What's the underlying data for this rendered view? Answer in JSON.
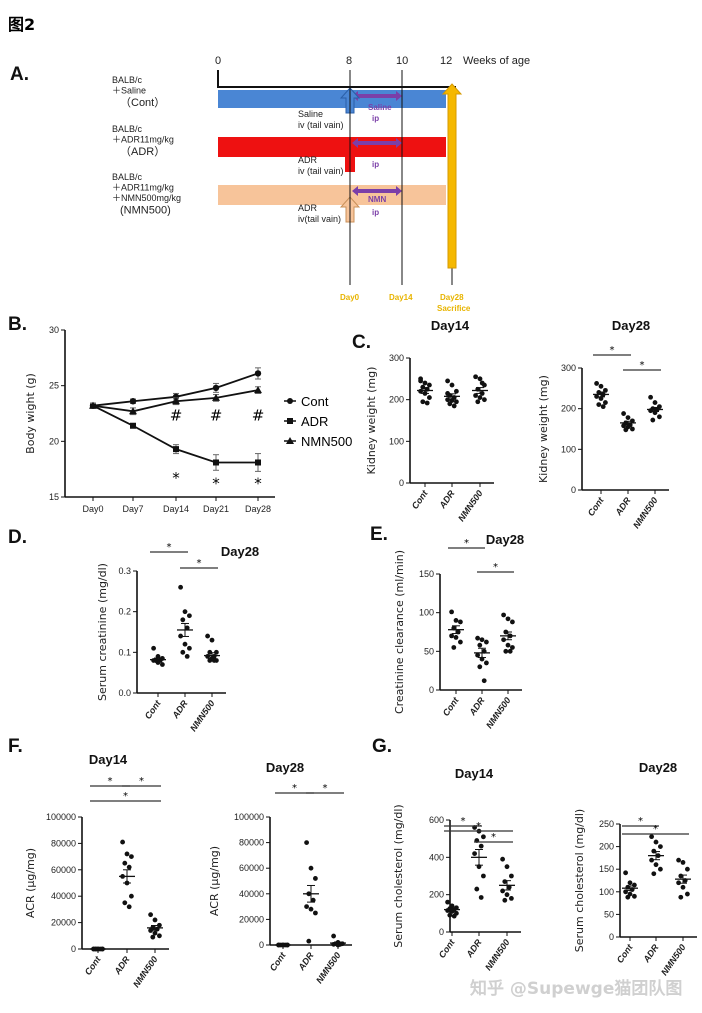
{
  "figure_label": "图2",
  "watermark": "知乎 @Supewge猫团队图",
  "panel_a": {
    "letter": "A.",
    "axis_ticks": [
      "0",
      "8",
      "10",
      "12"
    ],
    "axis_label": "Weeks of age",
    "groups": [
      {
        "lines": [
          "BALB/c",
          "＋Saline",
          "（Cont）"
        ],
        "bar_color": "#4a86d4",
        "inj": [
          "Saline",
          "iv (tail vain)"
        ],
        "inj_color": "#7a9fd0",
        "ip": [
          "Saline",
          "ip"
        ]
      },
      {
        "lines": [
          "BALB/c",
          "＋ADR11mg/kg",
          "（ADR）"
        ],
        "bar_color": "#ee1111",
        "inj": [
          "ADR",
          "iv (tail vain)"
        ],
        "inj_color": "#d42020",
        "ip": [
          "",
          "ip"
        ]
      },
      {
        "lines": [
          "BALB/c",
          "＋ADR11mg/kg",
          "＋NMN500mg/kg",
          "(NMN500)"
        ],
        "bar_color": "#f7c49a",
        "inj": [
          "ADR",
          "iv(tail vain)"
        ],
        "inj_color": "#e0a060",
        "ip": [
          "NMN",
          "ip"
        ]
      }
    ],
    "ip_color": "#7b3fa8",
    "day_labels": [
      "Day0",
      "Day14",
      "Day28",
      "Sacrifice"
    ],
    "day_color": "#e8b400",
    "sacrifice_color": "#f5b800"
  },
  "letters": {
    "b": "B.",
    "c": "C.",
    "d": "D.",
    "e": "E.",
    "f": "F.",
    "g": "G."
  },
  "chart_data": [
    {
      "id": "B",
      "type": "line",
      "title": "",
      "ylabel": "Body wight (g)",
      "xlabel": "",
      "categories": [
        "Day0",
        "Day7",
        "Day14",
        "Day21",
        "Day28"
      ],
      "ylim": [
        15,
        30
      ],
      "yticks": [
        15,
        20,
        25,
        30
      ],
      "series": [
        {
          "name": "Cont",
          "marker": "circle",
          "values": [
            23.2,
            23.6,
            24.0,
            24.8,
            26.1
          ],
          "sem": [
            0.2,
            0.2,
            0.3,
            0.4,
            0.5
          ]
        },
        {
          "name": "ADR",
          "marker": "square",
          "values": [
            23.2,
            21.4,
            19.3,
            18.1,
            18.1
          ],
          "sem": [
            0.2,
            0.2,
            0.4,
            0.7,
            0.8
          ]
        },
        {
          "name": "NMN500",
          "marker": "triangle",
          "values": [
            23.2,
            22.7,
            23.6,
            23.9,
            24.6
          ],
          "sem": [
            0.2,
            0.3,
            0.3,
            0.3,
            0.3
          ]
        }
      ],
      "annotations": [
        {
          "text": "#",
          "category": "Day14",
          "y": 22.3
        },
        {
          "text": "#",
          "category": "Day21",
          "y": 22.3
        },
        {
          "text": "#",
          "category": "Day28",
          "y": 22.3
        },
        {
          "text": "*",
          "category": "Day14",
          "y": 16.7
        },
        {
          "text": "*",
          "category": "Day21",
          "y": 16.2
        },
        {
          "text": "*",
          "category": "Day28",
          "y": 16.2
        }
      ],
      "legend": "right"
    },
    {
      "id": "C14",
      "type": "scatter",
      "title": "Day14",
      "ylabel": "Kidney weight (mg)",
      "categories": [
        "Cont",
        "ADR",
        "NMN500"
      ],
      "ylim": [
        0,
        300
      ],
      "yticks": [
        0,
        100,
        200,
        300
      ],
      "groups": [
        {
          "values": [
            250,
            240,
            235,
            230,
            225,
            220,
            215,
            205,
            195,
            192,
            245
          ],
          "mean": 222,
          "sem": 7
        },
        {
          "values": [
            245,
            235,
            220,
            210,
            205,
            200,
            198,
            195,
            190,
            185,
            215
          ],
          "mean": 208,
          "sem": 6
        },
        {
          "values": [
            255,
            250,
            235,
            225,
            215,
            210,
            205,
            200,
            195,
            240
          ],
          "mean": 222,
          "sem": 7
        }
      ],
      "significance": []
    },
    {
      "id": "C28",
      "type": "scatter",
      "title": "Day28",
      "ylabel": "Kidney weight (mg)",
      "categories": [
        "Cont",
        "ADR",
        "NMN500"
      ],
      "ylim": [
        0,
        300
      ],
      "yticks": [
        0,
        100,
        200,
        300
      ],
      "groups": [
        {
          "values": [
            262,
            255,
            245,
            240,
            235,
            230,
            225,
            215,
            210,
            205
          ],
          "mean": 235,
          "sem": 6
        },
        {
          "values": [
            188,
            178,
            170,
            165,
            160,
            158,
            155,
            150,
            148
          ],
          "mean": 165,
          "sem": 4
        },
        {
          "values": [
            228,
            215,
            205,
            200,
            198,
            195,
            190,
            180,
            172
          ],
          "mean": 198,
          "sem": 5
        }
      ],
      "significance": [
        {
          "from": 0,
          "to": 1,
          "label": "*"
        },
        {
          "from": 1,
          "to": 2,
          "label": "*"
        }
      ]
    },
    {
      "id": "D",
      "type": "scatter",
      "title": "Day28",
      "ylabel": "Serum creatinine (mg/dl)",
      "categories": [
        "Cont",
        "ADR",
        "NMN500"
      ],
      "ylim": [
        0,
        0.3
      ],
      "yticks": [
        0.0,
        0.1,
        0.2,
        0.3
      ],
      "tick_decimals": 1,
      "groups": [
        {
          "values": [
            0.11,
            0.09,
            0.085,
            0.08,
            0.08,
            0.08,
            0.075,
            0.07,
            0.08
          ],
          "mean": 0.082,
          "sem": 0.004
        },
        {
          "values": [
            0.26,
            0.2,
            0.19,
            0.18,
            0.16,
            0.14,
            0.12,
            0.11,
            0.1,
            0.09
          ],
          "mean": 0.155,
          "sem": 0.016
        },
        {
          "values": [
            0.14,
            0.13,
            0.1,
            0.1,
            0.09,
            0.09,
            0.085,
            0.08,
            0.08,
            0.08
          ],
          "mean": 0.092,
          "sem": 0.007
        }
      ],
      "significance": [
        {
          "from": 0,
          "to": 1,
          "label": "*"
        },
        {
          "from": 1,
          "to": 2,
          "label": "*"
        }
      ]
    },
    {
      "id": "E",
      "type": "scatter",
      "title": "Day28",
      "ylabel": "Creatinine clearance (ml/min)",
      "categories": [
        "Cont",
        "ADR",
        "NMN500"
      ],
      "ylim": [
        0,
        150
      ],
      "yticks": [
        0,
        50,
        100,
        150
      ],
      "groups": [
        {
          "values": [
            101,
            90,
            88,
            80,
            75,
            70,
            68,
            62,
            55
          ],
          "mean": 78,
          "sem": 5
        },
        {
          "values": [
            67,
            65,
            62,
            58,
            50,
            45,
            40,
            35,
            30,
            12
          ],
          "mean": 48,
          "sem": 6
        },
        {
          "values": [
            97,
            92,
            88,
            75,
            70,
            65,
            58,
            55,
            50,
            50
          ],
          "mean": 70,
          "sem": 5
        }
      ],
      "significance": [
        {
          "from": 0,
          "to": 1,
          "label": "*"
        },
        {
          "from": 1,
          "to": 2,
          "label": "*"
        }
      ]
    },
    {
      "id": "F14",
      "type": "scatter",
      "title": "Day14",
      "ylabel": "ACR (μg/mg)",
      "categories": [
        "Cont",
        "ADR",
        "NMN500"
      ],
      "ylim": [
        0,
        100000
      ],
      "yticks": [
        0,
        20000,
        40000,
        60000,
        80000,
        100000
      ],
      "groups": [
        {
          "values": [
            0,
            0,
            0,
            0,
            0,
            0,
            0,
            0,
            0
          ],
          "mean": 0,
          "sem": 0
        },
        {
          "values": [
            81000,
            72000,
            70000,
            65000,
            62000,
            55000,
            50000,
            40000,
            35000,
            32000
          ],
          "mean": 55000,
          "sem": 5000
        },
        {
          "values": [
            26000,
            22000,
            18000,
            16000,
            15000,
            14000,
            12000,
            10000,
            9000
          ],
          "mean": 16000,
          "sem": 1800
        }
      ],
      "significance": [
        {
          "from": 0,
          "to": 1,
          "label": "*"
        },
        {
          "from": 1,
          "to": 2,
          "label": "*"
        },
        {
          "from": 0,
          "to": 2,
          "label": "*"
        }
      ]
    },
    {
      "id": "F28",
      "type": "scatter",
      "title": "Day28",
      "ylabel": "ACR (μg/mg)",
      "categories": [
        "Cont",
        "ADR",
        "NMN500"
      ],
      "ylim": [
        0,
        100000
      ],
      "yticks": [
        0,
        20000,
        40000,
        60000,
        80000,
        100000
      ],
      "groups": [
        {
          "values": [
            0,
            0,
            0,
            0,
            0,
            0,
            0,
            0
          ],
          "mean": 0,
          "sem": 0
        },
        {
          "values": [
            80000,
            60000,
            52000,
            40000,
            35000,
            30000,
            28000,
            25000,
            3000
          ],
          "mean": 40000,
          "sem": 6500
        },
        {
          "values": [
            7000,
            2000,
            1000,
            1000,
            500,
            500,
            0
          ],
          "mean": 1500,
          "sem": 800
        }
      ],
      "significance": [
        {
          "from": 0,
          "to": 1,
          "label": "*"
        },
        {
          "from": 1,
          "to": 2,
          "label": "*"
        }
      ]
    },
    {
      "id": "G14",
      "type": "scatter",
      "title": "Day14",
      "ylabel": "Serum cholesterol (mg/dl)",
      "categories": [
        "Cont",
        "ADR",
        "NMN500"
      ],
      "ylim": [
        0,
        600
      ],
      "yticks": [
        0,
        200,
        400,
        600
      ],
      "groups": [
        {
          "values": [
            160,
            140,
            130,
            125,
            120,
            115,
            110,
            100,
            90,
            85
          ],
          "mean": 120,
          "sem": 8
        },
        {
          "values": [
            560,
            540,
            510,
            490,
            460,
            420,
            350,
            300,
            230,
            185
          ],
          "mean": 400,
          "sem": 42
        },
        {
          "values": [
            390,
            350,
            300,
            270,
            240,
            220,
            200,
            180,
            170
          ],
          "mean": 250,
          "sem": 25
        }
      ],
      "significance": [
        {
          "from": 0,
          "to": 1,
          "label": "*"
        },
        {
          "from": 0,
          "to": 2,
          "label": "*"
        },
        {
          "from": 1,
          "to": 2,
          "label": "*"
        }
      ]
    },
    {
      "id": "G28",
      "type": "scatter",
      "title": "Day28",
      "ylabel": "Serum cholesterol (mg/dl)",
      "categories": [
        "Cont",
        "ADR",
        "NMN500"
      ],
      "ylim": [
        0,
        250
      ],
      "yticks": [
        0,
        50,
        100,
        150,
        200,
        250
      ],
      "groups": [
        {
          "values": [
            142,
            120,
            115,
            110,
            105,
            100,
            95,
            90,
            88
          ],
          "mean": 108,
          "sem": 5
        },
        {
          "values": [
            222,
            210,
            200,
            190,
            180,
            170,
            160,
            150,
            140
          ],
          "mean": 180,
          "sem": 9
        },
        {
          "values": [
            170,
            165,
            150,
            135,
            125,
            120,
            110,
            95,
            88
          ],
          "mean": 128,
          "sem": 9
        }
      ],
      "significance": [
        {
          "from": 0,
          "to": 1,
          "label": "*"
        },
        {
          "from": 0,
          "to": 2,
          "label": "*"
        }
      ]
    }
  ]
}
